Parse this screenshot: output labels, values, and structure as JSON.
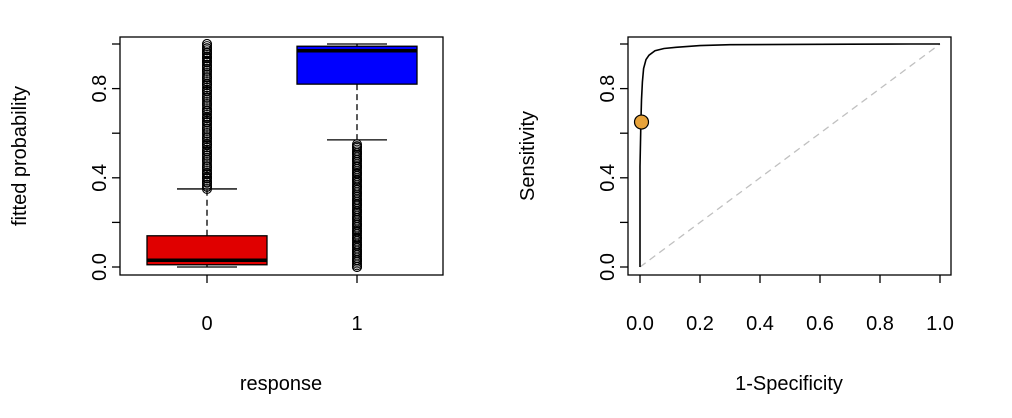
{
  "colors": {
    "box_0": "#e00000",
    "box_1": "#0000ff",
    "roc_point": "#e8a33a",
    "diagonal": "#c0c0c0"
  },
  "chart_data": [
    {
      "type": "boxplot",
      "title": "",
      "xlabel": "response",
      "ylabel": "fitted probability",
      "ylim": [
        0,
        1
      ],
      "y_ticks": [
        "0.0",
        "0.4",
        "0.8"
      ],
      "y_minor_ticks": [
        0.2,
        0.6,
        1.0
      ],
      "categories": [
        "0",
        "1"
      ],
      "boxes": [
        {
          "category": "0",
          "whisker_low": 0.0,
          "q1": 0.01,
          "median": 0.03,
          "q3": 0.14,
          "whisker_high": 0.35,
          "outlier_range": [
            0.35,
            1.0
          ],
          "outliers": [
            0.36,
            0.38,
            0.4,
            0.42,
            0.45,
            0.48,
            0.5,
            0.52,
            0.55,
            0.58,
            0.6,
            0.62,
            0.65,
            0.67,
            0.7,
            0.73,
            0.76,
            0.79,
            0.82,
            0.85,
            0.88,
            0.9,
            0.92,
            0.94,
            0.96,
            0.98,
            1.0
          ]
        },
        {
          "category": "1",
          "whisker_low": 0.57,
          "q1": 0.82,
          "median": 0.97,
          "q3": 0.99,
          "whisker_high": 1.0,
          "outlier_range": [
            0.0,
            0.55
          ],
          "outliers": [
            0.0,
            0.03,
            0.07,
            0.1,
            0.13,
            0.16,
            0.19,
            0.22,
            0.25,
            0.28,
            0.3,
            0.33,
            0.36,
            0.39,
            0.42,
            0.45,
            0.48,
            0.51,
            0.54
          ]
        }
      ]
    },
    {
      "type": "line",
      "title": "",
      "xlabel": "1-Specificity",
      "ylabel": "Sensitivity",
      "xlim": [
        0,
        1
      ],
      "ylim": [
        0,
        1
      ],
      "x_ticks": [
        "0.0",
        "0.2",
        "0.4",
        "0.6",
        "0.8",
        "1.0"
      ],
      "y_ticks": [
        "0.0",
        "0.4",
        "0.8"
      ],
      "y_minor_ticks": [
        0.2,
        0.6,
        1.0
      ],
      "series": [
        {
          "x": [
            0.0,
            0.0,
            0.003,
            0.005,
            0.008,
            0.012,
            0.02,
            0.03,
            0.05,
            0.08,
            0.12,
            0.2,
            0.3,
            0.5,
            0.7,
            0.9,
            1.0
          ],
          "y": [
            0.0,
            0.45,
            0.65,
            0.75,
            0.83,
            0.89,
            0.93,
            0.95,
            0.97,
            0.98,
            0.985,
            0.993,
            0.997,
            0.998,
            0.999,
            1.0,
            1.0
          ]
        }
      ],
      "reference_line": {
        "x": [
          0,
          1
        ],
        "y": [
          0,
          1
        ],
        "style": "dashed"
      },
      "highlight_point": {
        "x": 0.005,
        "y": 0.65
      }
    }
  ]
}
